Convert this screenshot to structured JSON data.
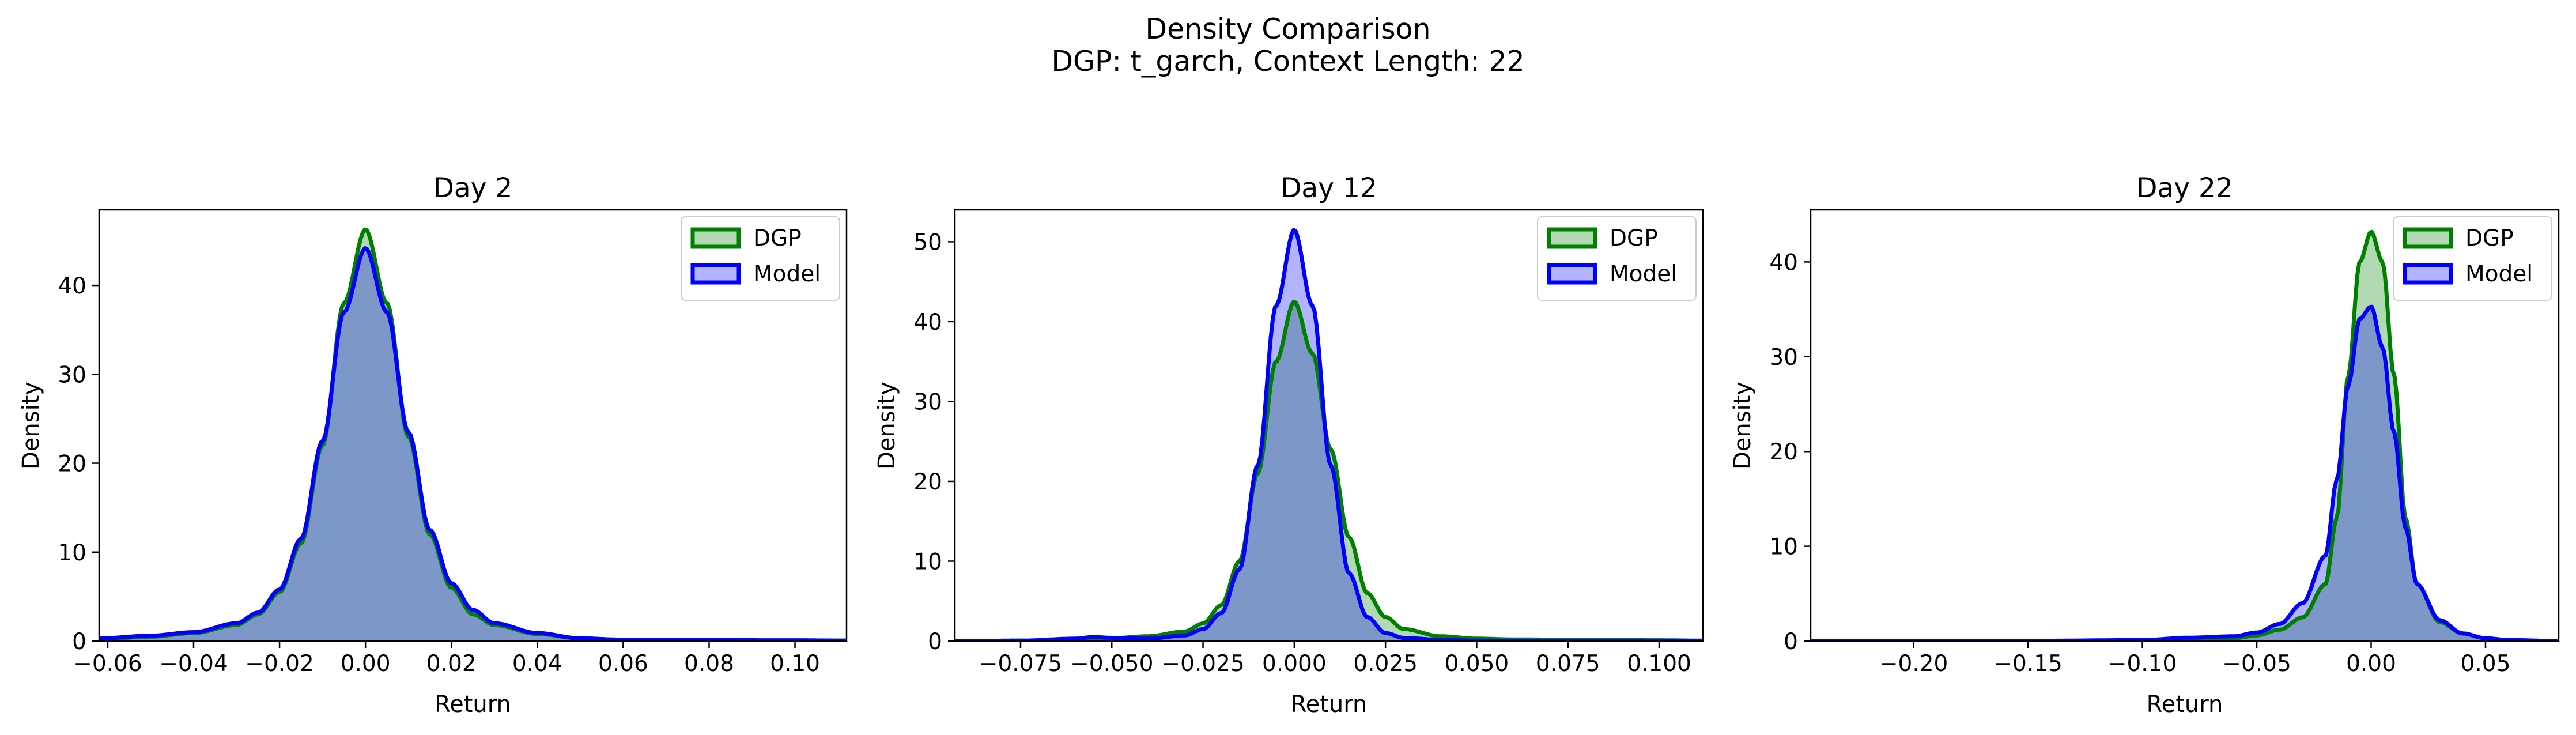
{
  "figure": {
    "title_line1": "Density Comparison",
    "title_line2": "DGP: t_garch, Context Length: 22"
  },
  "colors": {
    "dgp_line": "#008000",
    "dgp_fill": "#b3d9b3",
    "model_line": "#0000ff",
    "model_fill": "#b3b3ff",
    "overlap_fill": "#7d97c8"
  },
  "chart_data": [
    {
      "type": "area",
      "title": "Day 2",
      "xlabel": "Return",
      "ylabel": "Density",
      "xlim": [
        -0.062,
        0.112
      ],
      "ylim": [
        0,
        48.5
      ],
      "xticks": [
        -0.06,
        -0.04,
        -0.02,
        0.0,
        0.02,
        0.04,
        0.06,
        0.08,
        0.1
      ],
      "xtick_labels": [
        "−0.06",
        "−0.04",
        "−0.02",
        "0.00",
        "0.02",
        "0.04",
        "0.06",
        "0.08",
        "0.10"
      ],
      "yticks": [
        0,
        10,
        20,
        30,
        40
      ],
      "ytick_labels": [
        "0",
        "10",
        "20",
        "30",
        "40"
      ],
      "legend": {
        "position": "top-right",
        "entries": [
          "DGP",
          "Model"
        ]
      },
      "grid": false,
      "series": [
        {
          "name": "DGP",
          "x": [
            -0.062,
            -0.05,
            -0.04,
            -0.03,
            -0.025,
            -0.02,
            -0.015,
            -0.01,
            -0.005,
            0,
            0.005,
            0.01,
            0.015,
            0.02,
            0.025,
            0.03,
            0.04,
            0.05,
            0.06,
            0.08,
            0.1,
            0.112
          ],
          "y": [
            0.2,
            0.5,
            0.9,
            1.8,
            3,
            5.5,
            11,
            22,
            38,
            46.3,
            38,
            23,
            12,
            6,
            3,
            1.8,
            0.8,
            0.3,
            0.15,
            0.1,
            0.08,
            0.05
          ]
        },
        {
          "name": "Model",
          "x": [
            -0.062,
            -0.05,
            -0.04,
            -0.03,
            -0.025,
            -0.02,
            -0.015,
            -0.01,
            -0.005,
            0,
            0.005,
            0.01,
            0.015,
            0.02,
            0.025,
            0.03,
            0.04,
            0.05,
            0.06,
            0.08,
            0.1,
            0.112
          ],
          "y": [
            0.3,
            0.6,
            1.0,
            2.0,
            3.2,
            5.8,
            11.5,
            22.5,
            37,
            44.2,
            37,
            23.5,
            12.5,
            6.5,
            3.5,
            2.0,
            0.9,
            0.3,
            0.15,
            0.1,
            0.08,
            0.05
          ]
        }
      ]
    },
    {
      "type": "area",
      "title": "Day 12",
      "xlabel": "Return",
      "ylabel": "Density",
      "xlim": [
        -0.093,
        0.112
      ],
      "ylim": [
        0,
        54
      ],
      "xticks": [
        -0.075,
        -0.05,
        -0.025,
        0.0,
        0.025,
        0.05,
        0.075,
        0.1
      ],
      "xtick_labels": [
        "−0.075",
        "−0.050",
        "−0.025",
        "0.000",
        "0.025",
        "0.050",
        "0.075",
        "0.100"
      ],
      "yticks": [
        0,
        10,
        20,
        30,
        40,
        50
      ],
      "ytick_labels": [
        "0",
        "10",
        "20",
        "30",
        "40",
        "50"
      ],
      "legend": {
        "position": "top-right",
        "entries": [
          "DGP",
          "Model"
        ]
      },
      "grid": false,
      "series": [
        {
          "name": "DGP",
          "x": [
            -0.093,
            -0.075,
            -0.06,
            -0.05,
            -0.04,
            -0.03,
            -0.025,
            -0.02,
            -0.015,
            -0.01,
            -0.005,
            0,
            0.005,
            0.01,
            0.015,
            0.02,
            0.025,
            0.03,
            0.04,
            0.05,
            0.06,
            0.08,
            0.1,
            0.112
          ],
          "y": [
            0,
            0.05,
            0.15,
            0.35,
            0.6,
            1.2,
            2.2,
            4.5,
            10,
            21,
            35,
            42.5,
            36,
            24,
            13,
            6,
            3,
            1.5,
            0.6,
            0.3,
            0.2,
            0.15,
            0.1,
            0.05
          ]
        },
        {
          "name": "Model",
          "x": [
            -0.093,
            -0.075,
            -0.06,
            -0.055,
            -0.05,
            -0.04,
            -0.03,
            -0.025,
            -0.02,
            -0.015,
            -0.01,
            -0.005,
            0,
            0.005,
            0.01,
            0.015,
            0.02,
            0.025,
            0.03,
            0.04,
            0.05,
            0.06,
            0.08,
            0.1,
            0.112
          ],
          "y": [
            0,
            0.05,
            0.3,
            0.5,
            0.4,
            0.3,
            0.7,
            1.5,
            3.5,
            9,
            22,
            42,
            51.5,
            42,
            22,
            8.5,
            3,
            1,
            0.4,
            0.15,
            0.05,
            0.02,
            0.01,
            0,
            0
          ]
        }
      ]
    },
    {
      "type": "area",
      "title": "Day 22",
      "xlabel": "Return",
      "ylabel": "Density",
      "xlim": [
        -0.245,
        0.082
      ],
      "ylim": [
        0,
        45.5
      ],
      "xticks": [
        -0.2,
        -0.15,
        -0.1,
        -0.05,
        0.0,
        0.05
      ],
      "xtick_labels": [
        "−0.20",
        "−0.15",
        "−0.10",
        "−0.05",
        "0.00",
        "0.05"
      ],
      "yticks": [
        0,
        10,
        20,
        30,
        40
      ],
      "ytick_labels": [
        "0",
        "10",
        "20",
        "30",
        "40"
      ],
      "legend": {
        "position": "top-right",
        "entries": [
          "DGP",
          "Model"
        ]
      },
      "grid": false,
      "series": [
        {
          "name": "DGP",
          "x": [
            -0.245,
            -0.2,
            -0.15,
            -0.1,
            -0.08,
            -0.06,
            -0.05,
            -0.04,
            -0.03,
            -0.02,
            -0.015,
            -0.01,
            -0.005,
            0,
            0.005,
            0.01,
            0.015,
            0.02,
            0.03,
            0.04,
            0.05,
            0.06,
            0.082
          ],
          "y": [
            0,
            0,
            0,
            0.05,
            0.15,
            0.3,
            0.6,
            1.2,
            2.5,
            6,
            13,
            28,
            40,
            43.2,
            40,
            28,
            13,
            6,
            2,
            0.8,
            0.3,
            0.1,
            0
          ]
        },
        {
          "name": "Model",
          "x": [
            -0.245,
            -0.2,
            -0.15,
            -0.1,
            -0.08,
            -0.06,
            -0.05,
            -0.04,
            -0.03,
            -0.02,
            -0.015,
            -0.01,
            -0.005,
            0,
            0.005,
            0.01,
            0.015,
            0.02,
            0.03,
            0.04,
            0.05,
            0.06,
            0.082
          ],
          "y": [
            0,
            0,
            0.02,
            0.1,
            0.35,
            0.5,
            0.9,
            1.8,
            4,
            9,
            17,
            27,
            34,
            35.3,
            31,
            22,
            12,
            6,
            2.2,
            0.8,
            0.3,
            0.1,
            0
          ]
        }
      ]
    }
  ]
}
